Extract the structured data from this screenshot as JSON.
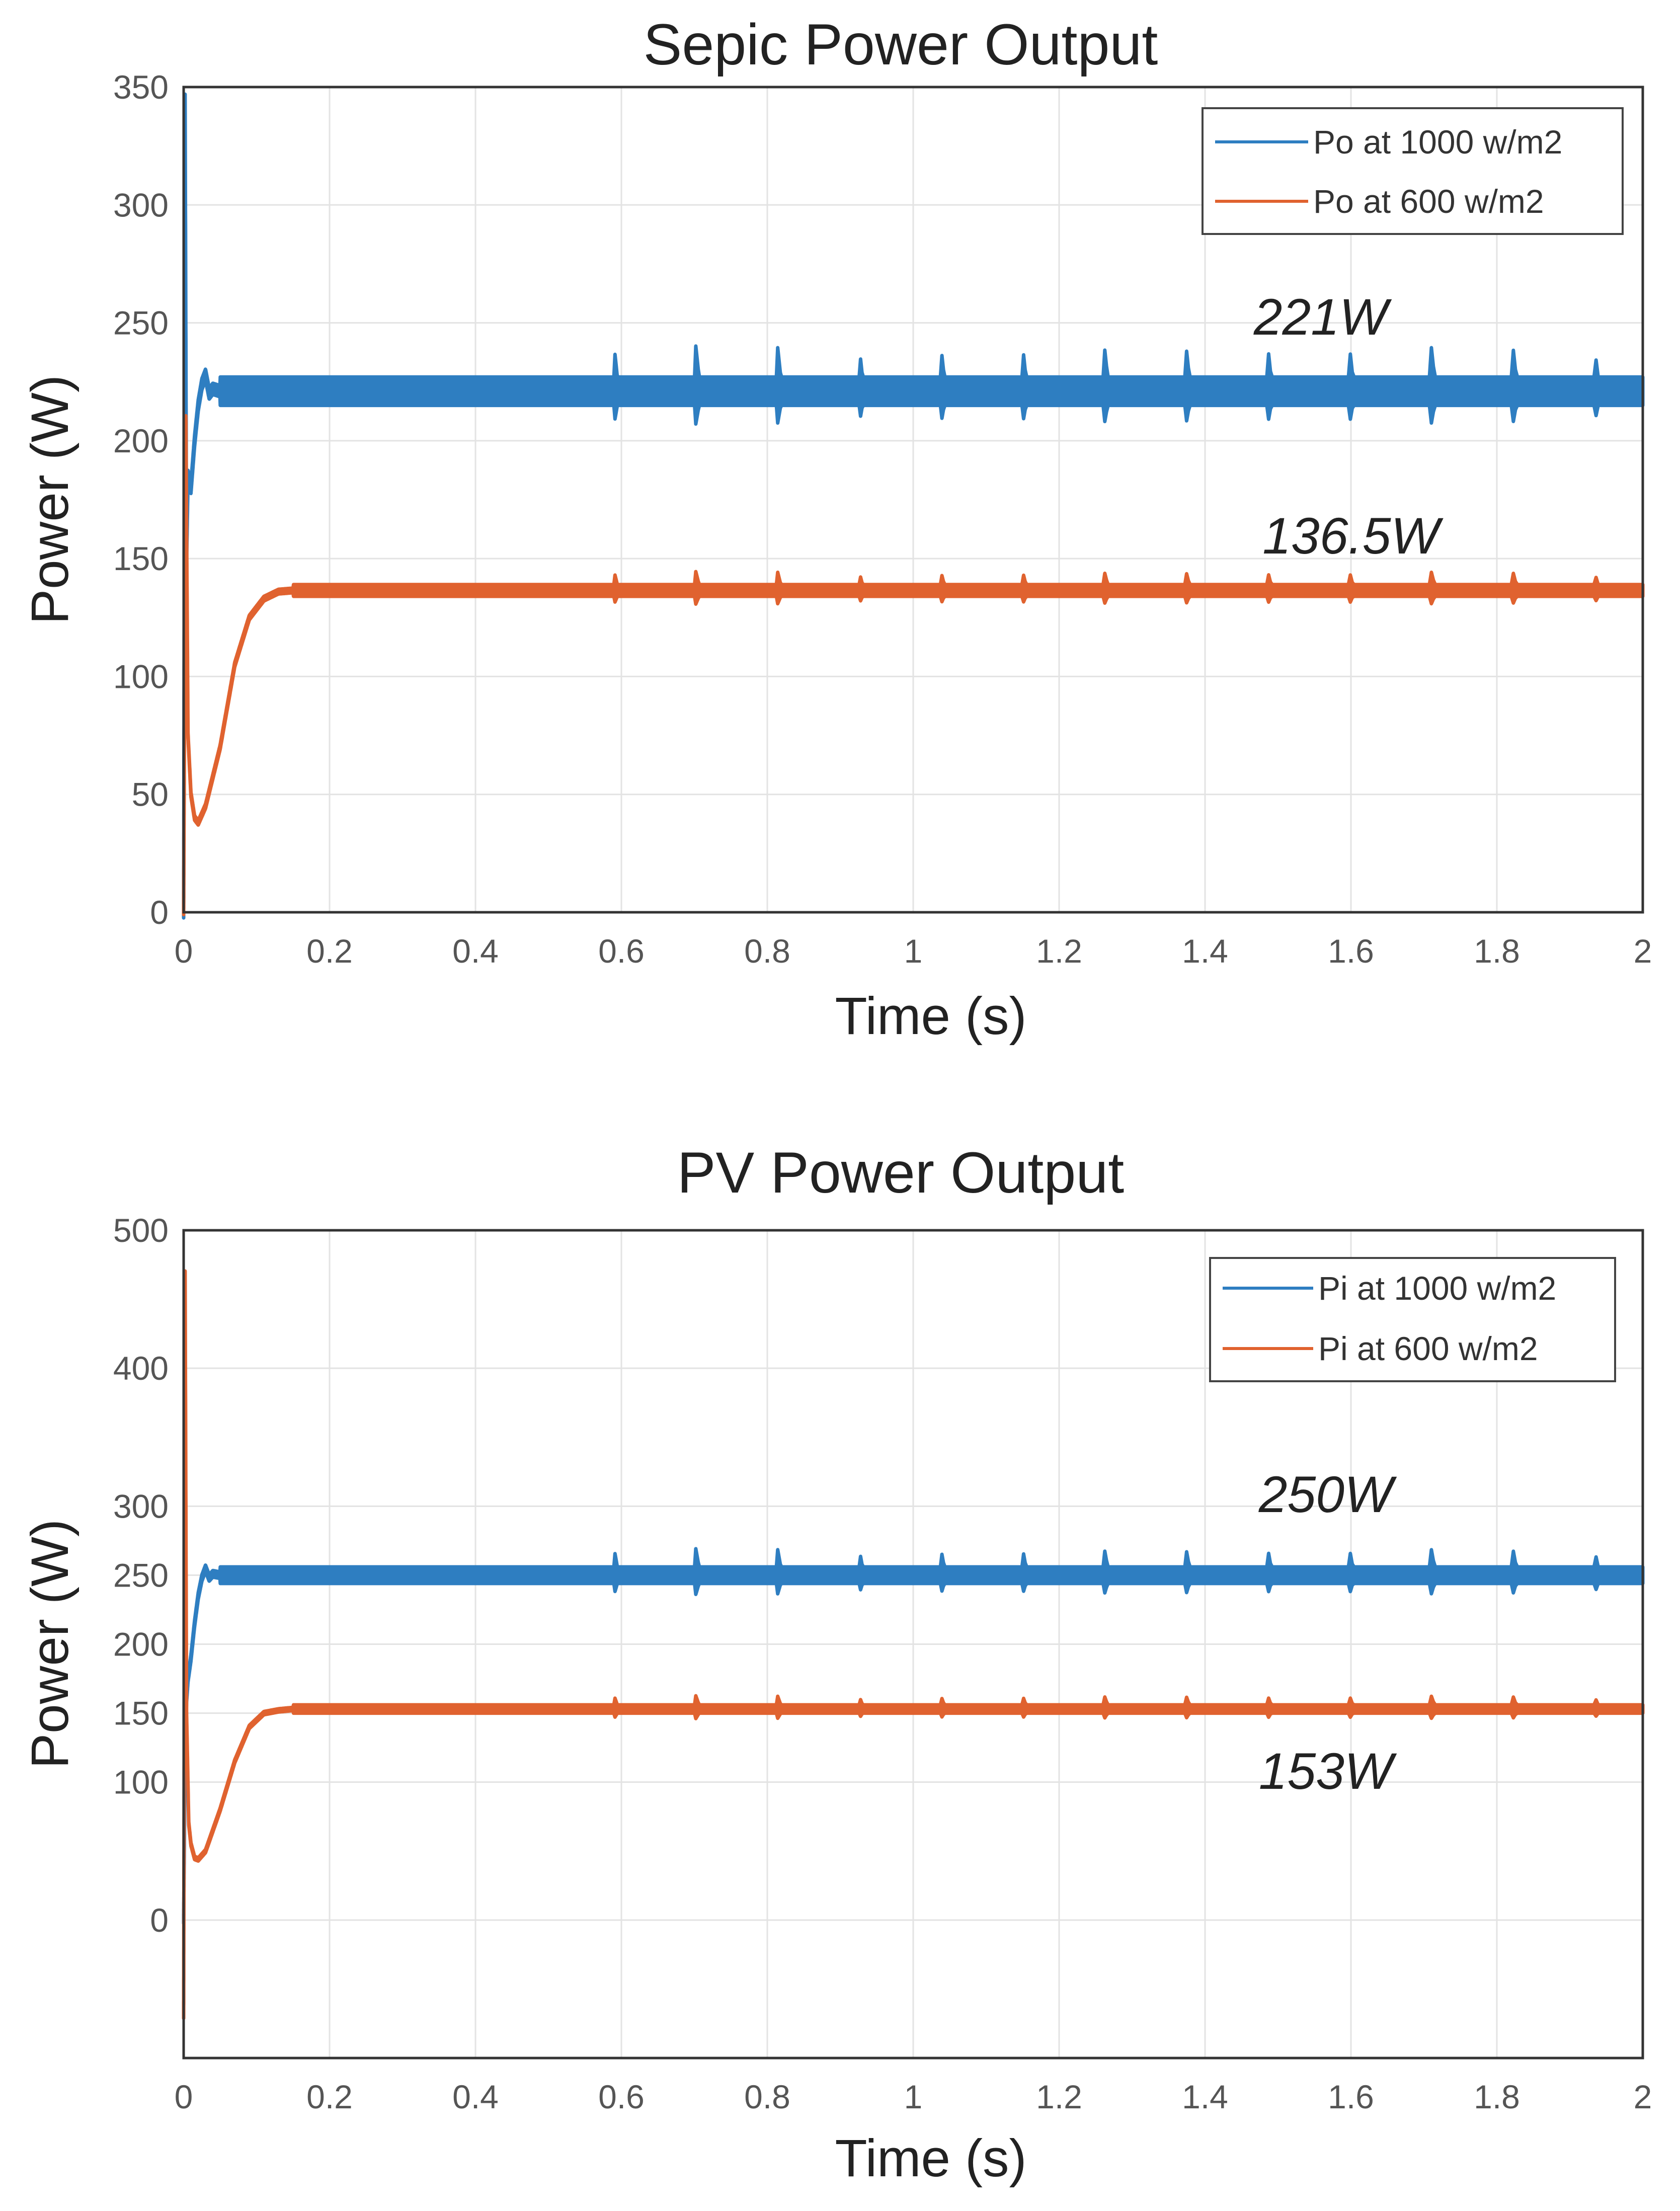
{
  "chart_data": [
    {
      "type": "line",
      "title": "Sepic Power Output",
      "xlabel": "Time (s)",
      "ylabel": "Power (W)",
      "xlim": [
        0,
        2
      ],
      "ylim": [
        0,
        350
      ],
      "xticks": [
        0,
        0.2,
        0.4,
        0.6,
        0.8,
        1,
        1.2,
        1.4,
        1.6,
        1.8,
        2
      ],
      "xtick_labels": [
        "0",
        "0.2",
        "0.4",
        "0.6",
        "0.8",
        "1",
        "1.2",
        "1.4",
        "1.6",
        "1.8",
        "2"
      ],
      "yticks": [
        0,
        50,
        100,
        150,
        200,
        250,
        300,
        350
      ],
      "ytick_labels": [
        "0",
        "50",
        "100",
        "150",
        "200",
        "250",
        "300",
        "350"
      ],
      "grid": true,
      "legend_position": "top-right",
      "series": [
        {
          "name": "Po at 1000 w/m2",
          "color": "#2e7ec1",
          "steady_value": 221,
          "ripple": 6,
          "x": [
            0,
            0.002,
            0.004,
            0.006,
            0.01,
            0.015,
            0.02,
            0.025,
            0.03,
            0.035,
            0.04,
            0.05,
            2
          ],
          "y": [
            0,
            345,
            150,
            185,
            180,
            200,
            215,
            224,
            228,
            220,
            222,
            221,
            221
          ]
        },
        {
          "name": "Po at 600 w/m2",
          "color": "#e0622f",
          "steady_value": 136.5,
          "ripple": 2.5,
          "x": [
            0,
            0.003,
            0.006,
            0.01,
            0.015,
            0.02,
            0.03,
            0.05,
            0.07,
            0.09,
            0.11,
            0.13,
            0.15,
            2
          ],
          "y": [
            0,
            210,
            75,
            50,
            40,
            38,
            45,
            70,
            105,
            125,
            133,
            136,
            136.5,
            136.5
          ]
        }
      ],
      "annotations": [
        {
          "text": "221W",
          "x": 1.56,
          "y": 250
        },
        {
          "text": "136.5W",
          "x": 1.56,
          "y": 158
        }
      ]
    },
    {
      "type": "line",
      "title": "PV Power Output",
      "xlabel": "Time (s)",
      "ylabel": "Power (W)",
      "xlim": [
        0,
        2
      ],
      "ylim": [
        -100,
        500
      ],
      "xticks": [
        0,
        0.2,
        0.4,
        0.6,
        0.8,
        1,
        1.2,
        1.4,
        1.6,
        1.8,
        2
      ],
      "xtick_labels": [
        "0",
        "0.2",
        "0.4",
        "0.6",
        "0.8",
        "1",
        "1.2",
        "1.4",
        "1.6",
        "1.8",
        "2"
      ],
      "yticks": [
        0,
        100,
        150,
        200,
        250,
        300,
        400,
        500
      ],
      "ytick_labels": [
        "0",
        "100",
        "150",
        "200",
        "250",
        "300",
        "400",
        "500"
      ],
      "grid": true,
      "legend_position": "top-right",
      "series": [
        {
          "name": "Pi at 1000 w/m2",
          "color": "#2e7ec1",
          "steady_value": 250,
          "ripple": 6,
          "x": [
            0,
            0.002,
            0.004,
            0.006,
            0.01,
            0.015,
            0.02,
            0.025,
            0.03,
            0.035,
            0.04,
            0.05,
            2
          ],
          "y": [
            0,
            120,
            160,
            175,
            190,
            215,
            235,
            248,
            255,
            248,
            251,
            250,
            250
          ]
        },
        {
          "name": "Pi at 600 w/m2",
          "color": "#e0622f",
          "steady_value": 153,
          "ripple": 3,
          "x": [
            0,
            0.002,
            0.004,
            0.007,
            0.01,
            0.015,
            0.02,
            0.03,
            0.05,
            0.07,
            0.09,
            0.11,
            0.13,
            0.15,
            2
          ],
          "y": [
            -70,
            470,
            150,
            70,
            55,
            45,
            44,
            50,
            80,
            115,
            140,
            150,
            152,
            153,
            153
          ]
        }
      ],
      "annotations": [
        {
          "text": "250W",
          "x": 1.56,
          "y": 303
        },
        {
          "text": "153W",
          "x": 1.56,
          "y": 98
        }
      ]
    }
  ]
}
